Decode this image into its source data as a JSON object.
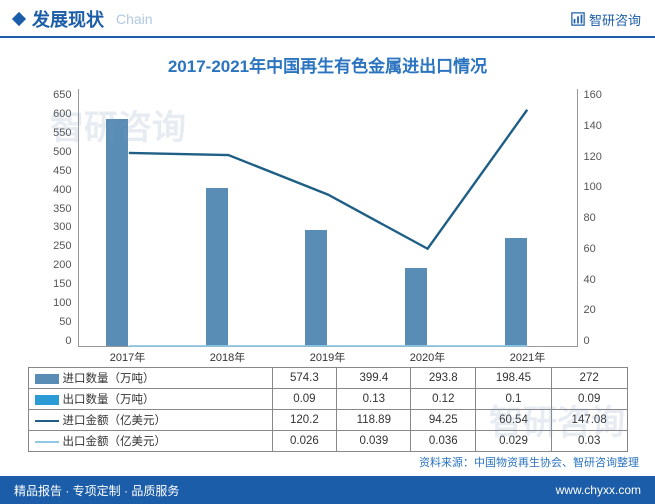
{
  "header": {
    "title": "发展现状",
    "subtitle": "Chain",
    "brand": "智研咨询",
    "url": "www.chyxx.com"
  },
  "chart": {
    "title": "2017-2021年中国再生有色金属进出口情况",
    "categories": [
      "2017年",
      "2018年",
      "2019年",
      "2020年",
      "2021年"
    ],
    "left_axis": {
      "min": 0,
      "max": 650,
      "step": 50
    },
    "right_axis": {
      "min": 0,
      "max": 160,
      "step": 20
    },
    "series": [
      {
        "key": "import_qty",
        "name": "进口数量（万吨）",
        "type": "bar",
        "axis": "left",
        "color": "#5a8db5",
        "values": [
          574.3,
          399.4,
          293.8,
          198.45,
          272
        ]
      },
      {
        "key": "export_qty",
        "name": "出口数量（万吨）",
        "type": "bar",
        "axis": "left",
        "color": "#2b9bd6",
        "values": [
          0.09,
          0.13,
          0.12,
          0.1,
          0.09
        ]
      },
      {
        "key": "import_amt",
        "name": "进口金额（亿美元）",
        "type": "line",
        "axis": "right",
        "color": "#1f5f86",
        "values": [
          120.2,
          118.89,
          94.25,
          60.54,
          147.08
        ]
      },
      {
        "key": "export_amt",
        "name": "出口金额（亿美元）",
        "type": "line",
        "axis": "right",
        "color": "#8fc9e8",
        "values": [
          0.026,
          0.039,
          0.036,
          0.029,
          0.03
        ]
      }
    ],
    "source": "资料来源：中国物资再生协会、智研咨询整理"
  },
  "footer": {
    "left": "精品报告 · 专项定制 · 品质服务",
    "right": "www.chyxx.com"
  },
  "watermark": "智研咨询"
}
